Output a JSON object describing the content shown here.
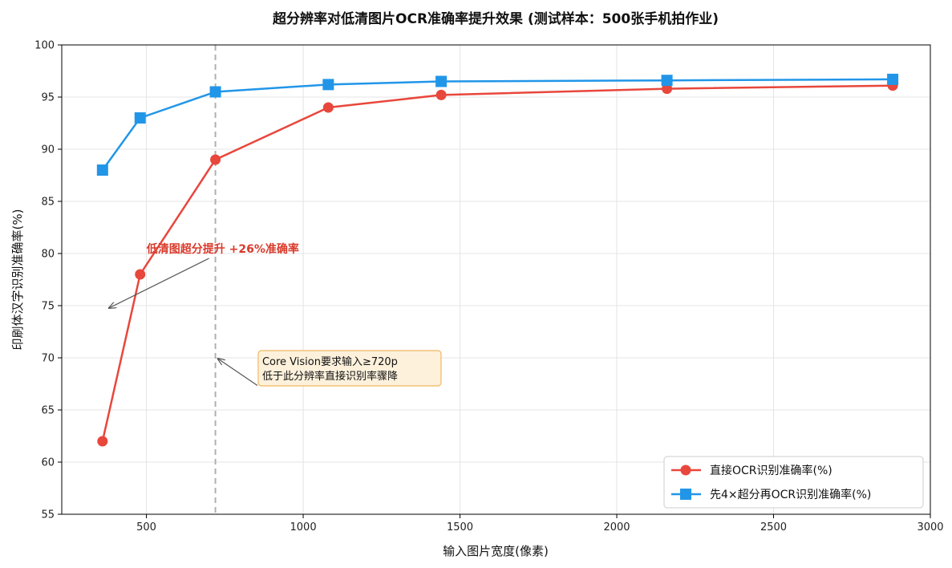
{
  "chart_data": {
    "type": "line",
    "title": "超分辨率对低清图片OCR准确率提升效果 (测试样本：500张手机拍作业)",
    "xlabel": "输入图片宽度(像素)",
    "ylabel": "印刷体汉字识别准确率(%)",
    "xlim": [
      230,
      3000
    ],
    "ylim": [
      55,
      100
    ],
    "xticks": [
      500,
      1000,
      1500,
      2000,
      2500,
      3000
    ],
    "yticks": [
      55,
      60,
      65,
      70,
      75,
      80,
      85,
      90,
      95,
      100
    ],
    "grid": true,
    "legend_position": "bottom-right",
    "series": [
      {
        "name": "直接OCR识别准确率(%)",
        "color": "#e8473c",
        "marker": "circle",
        "x": [
          360,
          480,
          720,
          1080,
          1440,
          2160,
          2880
        ],
        "y": [
          62,
          78,
          89,
          94,
          95.2,
          95.8,
          96.1
        ]
      },
      {
        "name": "先4×超分再OCR识别准确率(%)",
        "color": "#2196e8",
        "marker": "square",
        "x": [
          360,
          480,
          720,
          1080,
          1440,
          2160,
          2880
        ],
        "y": [
          88,
          93,
          95.5,
          96.2,
          96.5,
          96.6,
          96.7
        ]
      }
    ],
    "reference_line": {
      "x": 720,
      "style": "dashed",
      "color": "#b0b0b0"
    },
    "annotations": [
      {
        "text": "低清图超分提升 +26%准确率",
        "color": "#d93a2b",
        "text_at": [
          480,
          80
        ],
        "arrow_from": [
          720,
          80
        ],
        "arrow_to": [
          360,
          75
        ]
      },
      {
        "lines": [
          "Core Vision要求输入≥720p",
          "低于此分辨率直接识别率骤降"
        ],
        "text_at": [
          900,
          67
        ],
        "arrow_from": [
          900,
          68.5
        ],
        "arrow_to": [
          720,
          70
        ],
        "box_fill": "#fdf1dc",
        "box_stroke": "#f0b860"
      }
    ]
  }
}
